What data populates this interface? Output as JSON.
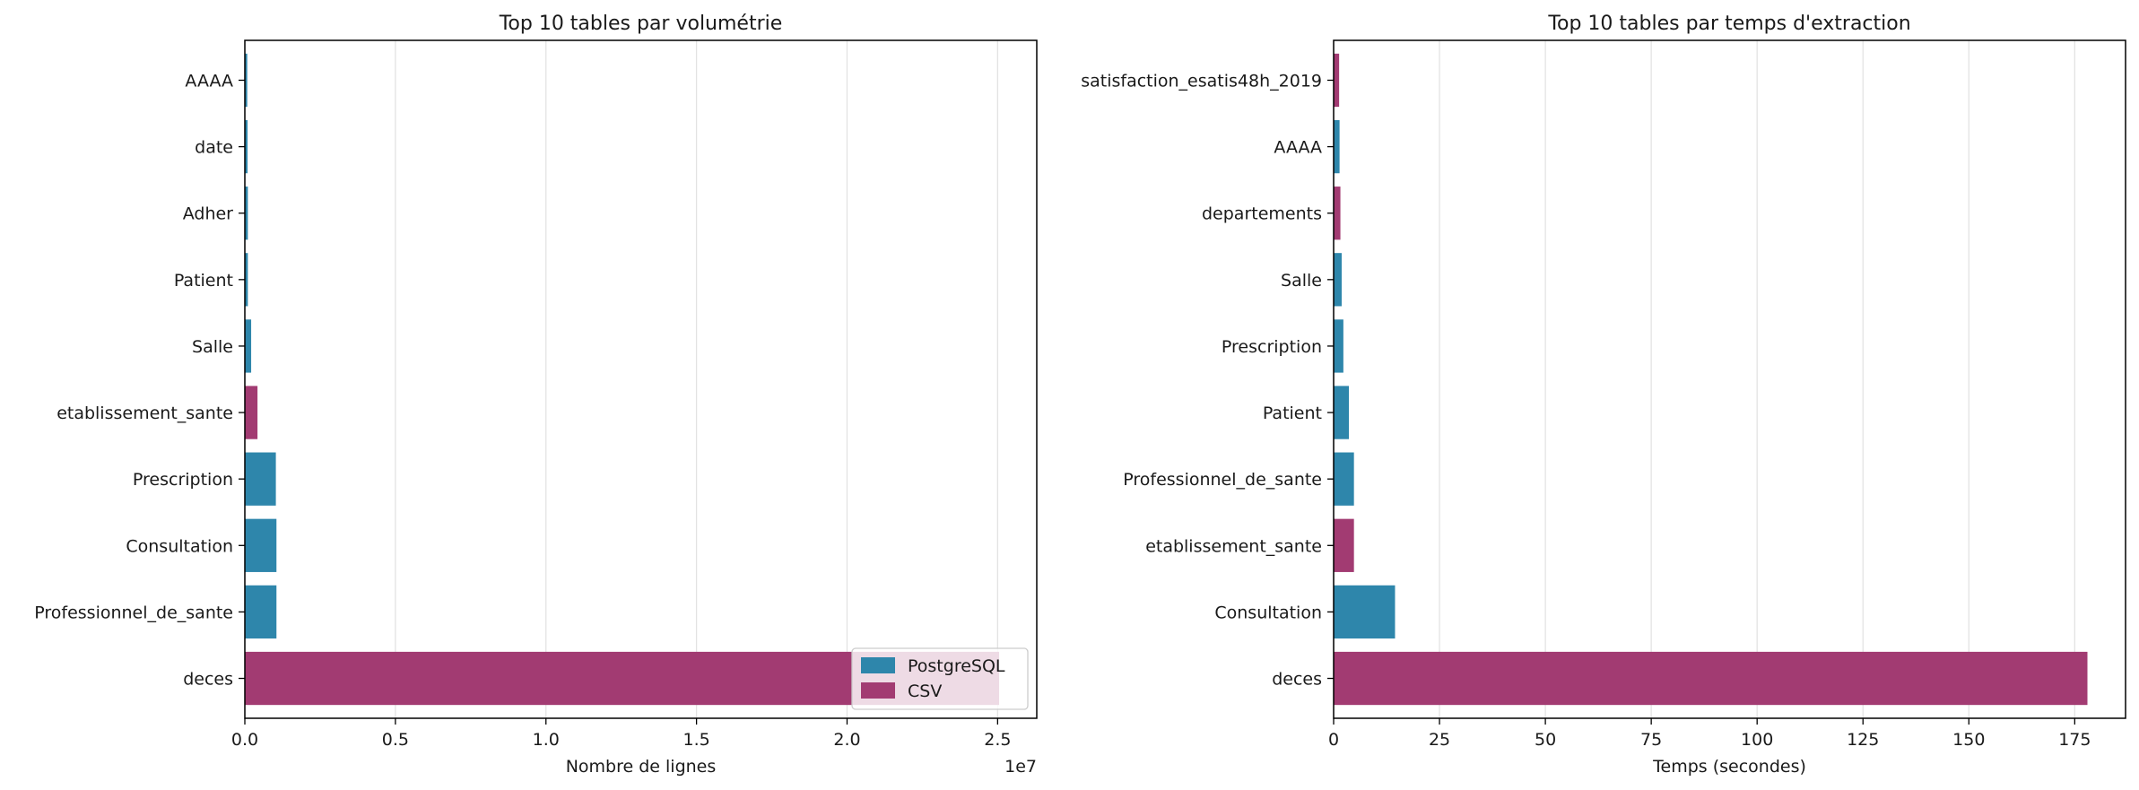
{
  "colors": {
    "postgresql": "#2e86ab",
    "csv": "#a23b72",
    "grid": "#e3e3e3",
    "axis": "#000000"
  },
  "chart_data": [
    {
      "type": "bar",
      "orientation": "horizontal",
      "title": "Top 10 tables par volumétrie",
      "xlabel": "Nombre de lignes",
      "ylabel": "",
      "offset_text": "1e7",
      "xlim": [
        0,
        26300000
      ],
      "xticks": [
        0,
        5000000,
        10000000,
        15000000,
        20000000,
        25000000
      ],
      "xtick_labels": [
        "0.0",
        "0.5",
        "1.0",
        "1.5",
        "2.0",
        "2.5"
      ],
      "grid": "x",
      "legend": {
        "placement": "lower-right",
        "entries": [
          {
            "label": "PostgreSQL",
            "color": "#2e86ab"
          },
          {
            "label": "CSV",
            "color": "#a23b72"
          }
        ]
      },
      "categories": [
        "deces",
        "Professionnel_de_sante",
        "Consultation",
        "Prescription",
        "etablissement_sante",
        "Salle",
        "Patient",
        "Adher",
        "date",
        "AAAA"
      ],
      "values": [
        25050000,
        1050000,
        1050000,
        1030000,
        420000,
        210000,
        100000,
        100000,
        90000,
        80000
      ],
      "sources": [
        "CSV",
        "PostgreSQL",
        "PostgreSQL",
        "PostgreSQL",
        "CSV",
        "PostgreSQL",
        "PostgreSQL",
        "PostgreSQL",
        "PostgreSQL",
        "PostgreSQL"
      ]
    },
    {
      "type": "bar",
      "orientation": "horizontal",
      "title": "Top 10 tables par temps d'extraction",
      "xlabel": "Temps (secondes)",
      "ylabel": "",
      "offset_text": "",
      "xlim": [
        0,
        187
      ],
      "xticks": [
        0,
        25,
        50,
        75,
        100,
        125,
        150,
        175
      ],
      "xtick_labels": [
        "0",
        "25",
        "50",
        "75",
        "100",
        "125",
        "150",
        "175"
      ],
      "grid": "x",
      "categories": [
        "deces",
        "Consultation",
        "etablissement_sante",
        "Professionnel_de_sante",
        "Patient",
        "Prescription",
        "Salle",
        "departements",
        "AAAA",
        "satisfaction_esatis48h_2019"
      ],
      "values": [
        178,
        14.5,
        4.8,
        4.8,
        3.6,
        2.3,
        1.9,
        1.6,
        1.4,
        1.3
      ],
      "sources": [
        "CSV",
        "PostgreSQL",
        "CSV",
        "PostgreSQL",
        "PostgreSQL",
        "PostgreSQL",
        "PostgreSQL",
        "CSV",
        "PostgreSQL",
        "CSV"
      ]
    }
  ]
}
